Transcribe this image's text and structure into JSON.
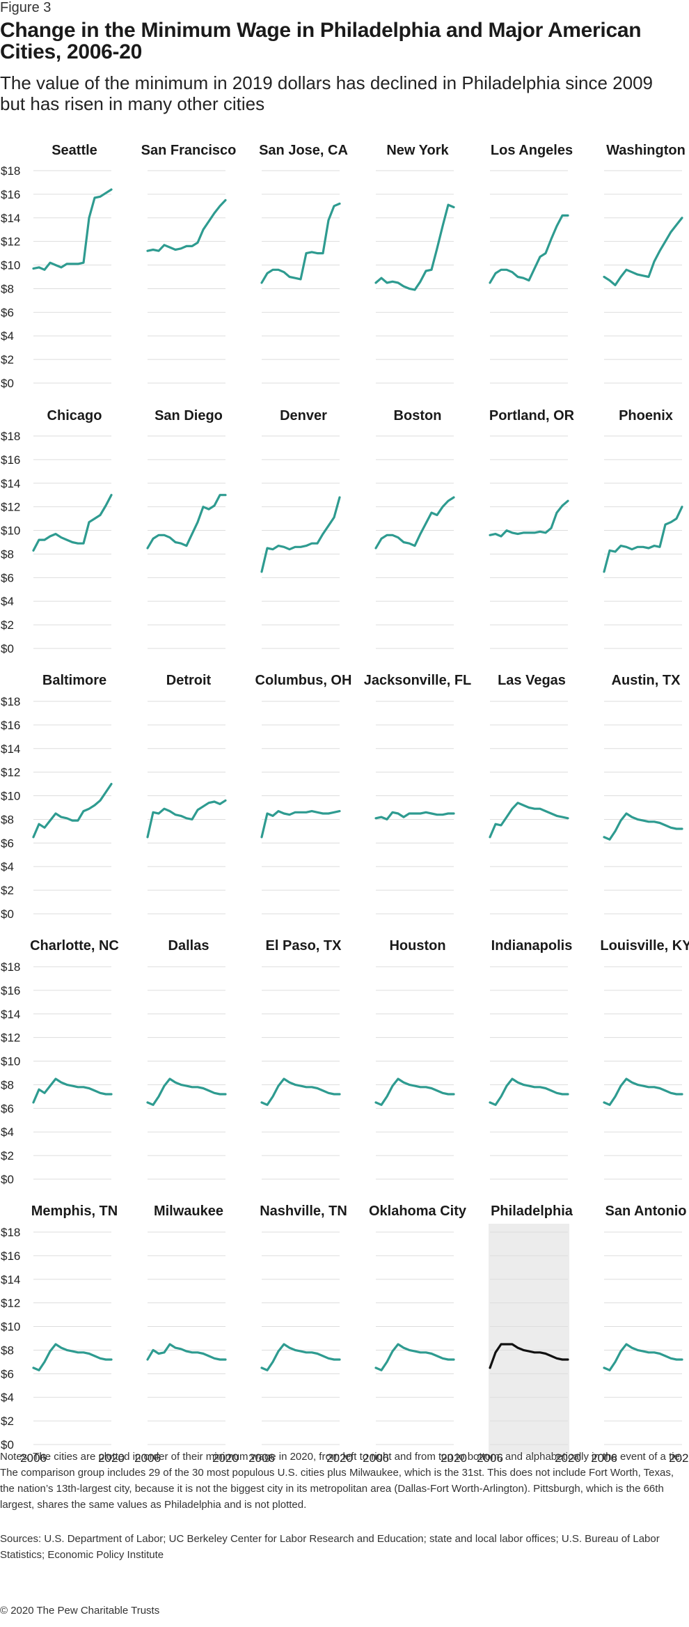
{
  "figure_label": "Figure 3",
  "title": "Change in the Minimum Wage in Philadelphia and Major American Cities, 2006-20",
  "subtitle": "The value of the minimum in 2019 dollars has declined in Philadelphia since 2009 but has risen in many other cities",
  "notes": "Notes: The cities are plotted in order of their minimum wage in 2020, from left to right and from top to bottom, and alphabetically in the event of a tie. The comparison group includes 29 of the 30 most populous U.S. cities plus Milwaukee, which is the 31st. This does not include Fort Worth, Texas, the nation’s 13th-largest city, because it is not the biggest city in its metropolitan area (Dallas-Fort Worth-Arlington). Pittsburgh, which is the 66th largest, shares the same values as Philadelphia and is not plotted.",
  "sources": "Sources: U.S. Department of Labor; UC Berkeley Center for Labor Research and Education; state and local labor offices; U.S. Bureau of Labor Statistics; Economic Policy Institute",
  "copyright": "© 2020 The Pew Charitable Trusts",
  "colors": {
    "series": "#2e9b90",
    "highlight_series": "#111111",
    "highlight_bg": "#ececec",
    "grid": "#dddddd"
  },
  "chart_data": {
    "type": "line",
    "x": [
      2006,
      2007,
      2008,
      2009,
      2010,
      2011,
      2012,
      2013,
      2014,
      2015,
      2016,
      2017,
      2018,
      2019,
      2020
    ],
    "ylim": [
      0,
      18
    ],
    "y_ticks": [
      "$0",
      "$2",
      "$4",
      "$6",
      "$8",
      "$10",
      "$12",
      "$14",
      "$16",
      "$18"
    ],
    "x_ticks": [
      "2006",
      "2020"
    ],
    "grid": true,
    "highlight": "Philadelphia",
    "series": [
      {
        "name": "Seattle",
        "values": [
          9.7,
          9.8,
          9.6,
          10.2,
          10.0,
          9.8,
          10.1,
          10.1,
          10.1,
          10.2,
          14.0,
          15.7,
          15.8,
          16.1,
          16.4
        ]
      },
      {
        "name": "San Francisco",
        "values": [
          11.2,
          11.3,
          11.2,
          11.7,
          11.5,
          11.3,
          11.4,
          11.6,
          11.6,
          11.9,
          13.0,
          13.7,
          14.4,
          15.0,
          15.5
        ]
      },
      {
        "name": "San Jose, CA",
        "values": [
          8.5,
          9.3,
          9.6,
          9.6,
          9.4,
          9.0,
          8.9,
          8.8,
          11.0,
          11.1,
          11.0,
          11.0,
          13.8,
          15.0,
          15.2
        ]
      },
      {
        "name": "New York",
        "values": [
          8.5,
          8.9,
          8.5,
          8.6,
          8.5,
          8.2,
          8.0,
          7.9,
          8.6,
          9.5,
          9.6,
          11.4,
          13.3,
          15.1,
          14.9
        ]
      },
      {
        "name": "Los Angeles",
        "values": [
          8.5,
          9.3,
          9.6,
          9.6,
          9.4,
          9.0,
          8.9,
          8.7,
          9.7,
          10.7,
          11.0,
          12.2,
          13.3,
          14.2,
          14.2
        ]
      },
      {
        "name": "Washington",
        "values": [
          9.0,
          8.7,
          8.3,
          9.0,
          9.6,
          9.4,
          9.2,
          9.1,
          9.0,
          10.3,
          11.2,
          12.0,
          12.8,
          13.4,
          14.0
        ]
      },
      {
        "name": "Chicago",
        "values": [
          8.3,
          9.2,
          9.2,
          9.5,
          9.7,
          9.4,
          9.2,
          9.0,
          8.9,
          8.9,
          10.7,
          11.0,
          11.3,
          12.1,
          13.0
        ]
      },
      {
        "name": "San Diego",
        "values": [
          8.5,
          9.3,
          9.6,
          9.6,
          9.4,
          9.0,
          8.9,
          8.7,
          9.7,
          10.7,
          12.0,
          11.8,
          12.1,
          13.0,
          13.0
        ]
      },
      {
        "name": "Denver",
        "values": [
          6.5,
          8.5,
          8.4,
          8.7,
          8.6,
          8.4,
          8.6,
          8.6,
          8.7,
          8.9,
          8.9,
          9.7,
          10.4,
          11.1,
          12.8
        ]
      },
      {
        "name": "Boston",
        "values": [
          8.5,
          9.3,
          9.6,
          9.6,
          9.4,
          9.0,
          8.9,
          8.7,
          9.7,
          10.6,
          11.5,
          11.3,
          12.0,
          12.5,
          12.8
        ]
      },
      {
        "name": "Portland, OR",
        "values": [
          9.6,
          9.7,
          9.5,
          10.0,
          9.8,
          9.7,
          9.8,
          9.8,
          9.8,
          9.9,
          9.8,
          10.2,
          11.5,
          12.1,
          12.5
        ]
      },
      {
        "name": "Phoenix",
        "values": [
          6.5,
          8.3,
          8.2,
          8.7,
          8.6,
          8.4,
          8.6,
          8.6,
          8.5,
          8.7,
          8.6,
          10.5,
          10.7,
          11.0,
          12.0
        ]
      },
      {
        "name": "Baltimore",
        "values": [
          6.5,
          7.6,
          7.3,
          7.9,
          8.5,
          8.2,
          8.1,
          7.9,
          7.9,
          8.7,
          8.9,
          9.2,
          9.6,
          10.3,
          11.0
        ]
      },
      {
        "name": "Detroit",
        "values": [
          6.5,
          8.6,
          8.5,
          8.9,
          8.7,
          8.4,
          8.3,
          8.1,
          8.0,
          8.8,
          9.1,
          9.4,
          9.5,
          9.3,
          9.6
        ]
      },
      {
        "name": "Columbus, OH",
        "values": [
          6.5,
          8.5,
          8.3,
          8.7,
          8.5,
          8.4,
          8.6,
          8.6,
          8.6,
          8.7,
          8.6,
          8.5,
          8.5,
          8.6,
          8.7
        ]
      },
      {
        "name": "Jacksonville, FL",
        "values": [
          8.1,
          8.2,
          8.0,
          8.6,
          8.5,
          8.2,
          8.5,
          8.5,
          8.5,
          8.6,
          8.5,
          8.4,
          8.4,
          8.5,
          8.5
        ]
      },
      {
        "name": "Las Vegas",
        "values": [
          6.5,
          7.6,
          7.5,
          8.2,
          8.9,
          9.4,
          9.2,
          9.0,
          8.9,
          8.9,
          8.7,
          8.5,
          8.3,
          8.2,
          8.1
        ]
      },
      {
        "name": "Austin, TX",
        "values": [
          6.5,
          6.3,
          7.0,
          7.9,
          8.5,
          8.2,
          8.0,
          7.9,
          7.8,
          7.8,
          7.7,
          7.5,
          7.3,
          7.2,
          7.2
        ]
      },
      {
        "name": "Charlotte, NC",
        "values": [
          6.5,
          7.6,
          7.3,
          7.9,
          8.5,
          8.2,
          8.0,
          7.9,
          7.8,
          7.8,
          7.7,
          7.5,
          7.3,
          7.2,
          7.2
        ]
      },
      {
        "name": "Dallas",
        "values": [
          6.5,
          6.3,
          7.0,
          7.9,
          8.5,
          8.2,
          8.0,
          7.9,
          7.8,
          7.8,
          7.7,
          7.5,
          7.3,
          7.2,
          7.2
        ]
      },
      {
        "name": "El Paso, TX",
        "values": [
          6.5,
          6.3,
          7.0,
          7.9,
          8.5,
          8.2,
          8.0,
          7.9,
          7.8,
          7.8,
          7.7,
          7.5,
          7.3,
          7.2,
          7.2
        ]
      },
      {
        "name": "Houston",
        "values": [
          6.5,
          6.3,
          7.0,
          7.9,
          8.5,
          8.2,
          8.0,
          7.9,
          7.8,
          7.8,
          7.7,
          7.5,
          7.3,
          7.2,
          7.2
        ]
      },
      {
        "name": "Indianapolis",
        "values": [
          6.5,
          6.3,
          7.0,
          7.9,
          8.5,
          8.2,
          8.0,
          7.9,
          7.8,
          7.8,
          7.7,
          7.5,
          7.3,
          7.2,
          7.2
        ]
      },
      {
        "name": "Louisville, KY",
        "values": [
          6.5,
          6.3,
          7.0,
          7.9,
          8.5,
          8.2,
          8.0,
          7.9,
          7.8,
          7.8,
          7.7,
          7.5,
          7.3,
          7.2,
          7.2
        ]
      },
      {
        "name": "Memphis, TN",
        "values": [
          6.5,
          6.3,
          7.0,
          7.9,
          8.5,
          8.2,
          8.0,
          7.9,
          7.8,
          7.8,
          7.7,
          7.5,
          7.3,
          7.2,
          7.2
        ]
      },
      {
        "name": "Milwaukee",
        "values": [
          7.2,
          8.0,
          7.7,
          7.8,
          8.5,
          8.2,
          8.1,
          7.9,
          7.8,
          7.8,
          7.7,
          7.5,
          7.3,
          7.2,
          7.2
        ]
      },
      {
        "name": "Nashville, TN",
        "values": [
          6.5,
          6.3,
          7.0,
          7.9,
          8.5,
          8.2,
          8.0,
          7.9,
          7.8,
          7.8,
          7.7,
          7.5,
          7.3,
          7.2,
          7.2
        ]
      },
      {
        "name": "Oklahoma City",
        "values": [
          6.5,
          6.3,
          7.0,
          7.9,
          8.5,
          8.2,
          8.0,
          7.9,
          7.8,
          7.8,
          7.7,
          7.5,
          7.3,
          7.2,
          7.2
        ]
      },
      {
        "name": "Philadelphia",
        "values": [
          6.5,
          7.8,
          8.5,
          8.5,
          8.5,
          8.2,
          8.0,
          7.9,
          7.8,
          7.8,
          7.7,
          7.5,
          7.3,
          7.2,
          7.2
        ]
      },
      {
        "name": "San Antonio",
        "values": [
          6.5,
          6.3,
          7.0,
          7.9,
          8.5,
          8.2,
          8.0,
          7.9,
          7.8,
          7.8,
          7.7,
          7.5,
          7.3,
          7.2,
          7.2
        ]
      }
    ]
  }
}
